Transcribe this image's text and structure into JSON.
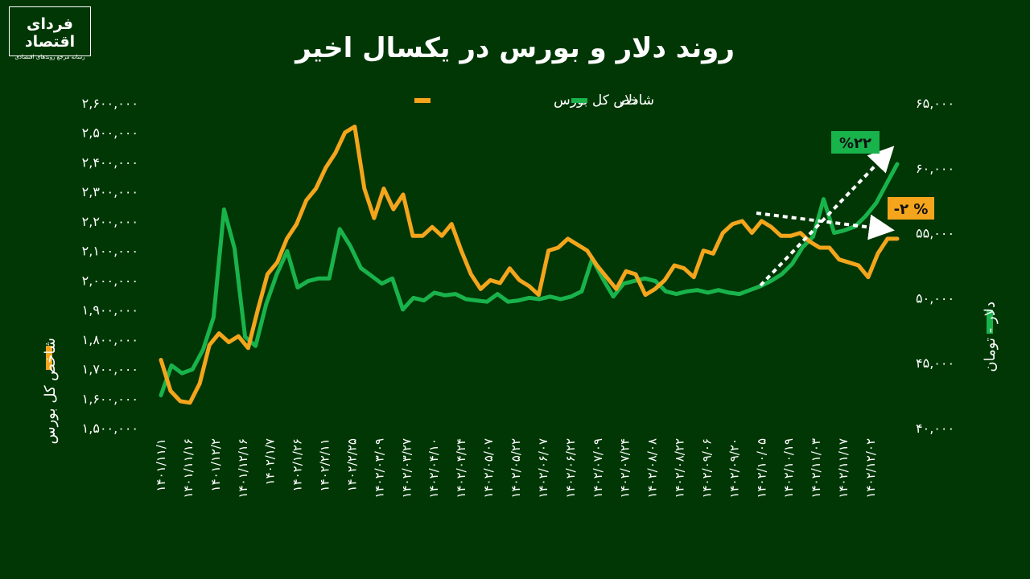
{
  "logo": {
    "name": "فردای اقتصاد",
    "tagline": "رسانه مرجع روندهای اقتصادی"
  },
  "chart_data": {
    "type": "line",
    "title": "روند دلار و بورس در یکسال اخیر",
    "y_left_label": "شاخص کل بورس",
    "y_right_label": "دلار - تومان",
    "y_left_ticks": [
      "2,600,000",
      "2,500,000",
      "2,400,000",
      "2,300,000",
      "2,200,000",
      "2,100,000",
      "2,000,000",
      "1,900,000",
      "1,800,000",
      "1,700,000",
      "1,600,000",
      "1,500,000"
    ],
    "y_right_ticks": [
      "65,000",
      "60,000",
      "55,000",
      "50,000",
      "45,000",
      "40,000"
    ],
    "y_left_range": [
      1500000,
      2600000
    ],
    "y_right_range": [
      40000,
      65000
    ],
    "x_ticks": [
      "1401/11/1",
      "1401/11/16",
      "1401/12/2",
      "1401/12/16",
      "1402/1/7",
      "1402/1/26",
      "1402/2/11",
      "1402/2/25",
      "1402/03/09",
      "1402/03/27",
      "1402/04/10",
      "1402/04/24",
      "1402/05/07",
      "1402/05/22",
      "1402/06/07",
      "1402/06/22",
      "1402/07/09",
      "1402/07/24",
      "1402/08/08",
      "1402/08/22",
      "1402/09/06",
      "1402/09/20",
      "1402/10/05",
      "1402/10/19",
      "1402/11/03",
      "1402/11/17",
      "1402/12/02"
    ],
    "series": [
      {
        "name": "شاخص کل بورس",
        "axis": "left",
        "color": "#F4A51C",
        "values": [
          1730000,
          1625000,
          1590000,
          1585000,
          1650000,
          1780000,
          1820000,
          1790000,
          1810000,
          1770000,
          1900000,
          2020000,
          2060000,
          2140000,
          2190000,
          2270000,
          2310000,
          2380000,
          2430000,
          2500000,
          2520000,
          2310000,
          2210000,
          2310000,
          2240000,
          2290000,
          2150000,
          2150000,
          2180000,
          2150000,
          2190000,
          2100000,
          2020000,
          1970000,
          2000000,
          1990000,
          2040000,
          2000000,
          1980000,
          1950000,
          2100000,
          2110000,
          2140000,
          2120000,
          2100000,
          2050000,
          2010000,
          1970000,
          2030000,
          2020000,
          1950000,
          1970000,
          2000000,
          2050000,
          2040000,
          2010000,
          2100000,
          2090000,
          2160000,
          2190000,
          2200000,
          2160000,
          2200000,
          2180000,
          2150000,
          2150000,
          2160000,
          2130000,
          2110000,
          2110000,
          2070000,
          2060000,
          2050000,
          2010000,
          2090000,
          2140000,
          2140000
        ]
      },
      {
        "name": "دلار",
        "axis": "right",
        "color": "#19B34C",
        "values": [
          42500,
          44800,
          44200,
          44500,
          46000,
          48500,
          56800,
          53800,
          47000,
          46300,
          49500,
          51800,
          53600,
          50800,
          51300,
          51500,
          51500,
          55300,
          54000,
          52300,
          51700,
          51100,
          51500,
          49100,
          50000,
          49800,
          50400,
          50200,
          50300,
          49900,
          49800,
          49700,
          50300,
          49700,
          49800,
          50000,
          49900,
          50100,
          49900,
          50100,
          50500,
          53000,
          51500,
          50100,
          51100,
          51300,
          51500,
          51300,
          50500,
          50300,
          50500,
          50600,
          50400,
          50600,
          50400,
          50300,
          50600,
          50900,
          51300,
          51800,
          52600,
          53900,
          54700,
          57600,
          55000,
          55200,
          55500,
          56300,
          57300,
          58800,
          60300
        ]
      }
    ],
    "annotations": [
      {
        "text": "%۲۲",
        "color": "#19B34C",
        "direction": "up"
      },
      {
        "text": "-۲ %",
        "color": "#F4A51C",
        "direction": "down"
      }
    ],
    "legend_position": "top-center",
    "grid": false
  }
}
